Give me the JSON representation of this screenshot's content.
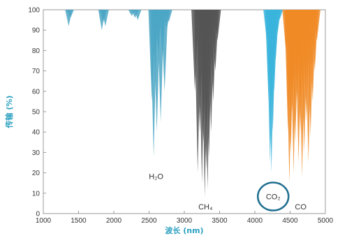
{
  "chart_data": {
    "type": "area",
    "xlabel": "波长 (nm)",
    "ylabel": "传输 (%)",
    "xlim": [
      1000,
      5000
    ],
    "ylim": [
      0,
      100
    ],
    "x_ticks": [
      "1000",
      "1500",
      "2000",
      "2500",
      "3000",
      "3500",
      "4000",
      "4500",
      "5000"
    ],
    "y_ticks": [
      "0",
      "10",
      "20",
      "30",
      "40",
      "50",
      "60",
      "70",
      "80",
      "90",
      "100"
    ],
    "label_color": "#2aa0c0",
    "annotations": [
      {
        "text": "H₂O",
        "x": 2600,
        "y": 17
      },
      {
        "text": "CH₄",
        "x": 3300,
        "y": 2
      },
      {
        "text": "CO₂",
        "x": 4260,
        "y": 7,
        "circled": true
      },
      {
        "text": "CO",
        "x": 4650,
        "y": 2
      }
    ],
    "series": [
      {
        "color": "#4ba6c4",
        "absorption_lines": [
          [
            1360,
            92
          ],
          [
            1385,
            96
          ],
          [
            1830,
            90
          ],
          [
            1850,
            94
          ],
          [
            1880,
            92
          ],
          [
            2255,
            97
          ],
          [
            2300,
            96
          ],
          [
            2340,
            95
          ],
          [
            2540,
            55
          ],
          [
            2565,
            28
          ],
          [
            2585,
            70
          ],
          [
            2610,
            40
          ],
          [
            2630,
            80
          ],
          [
            2665,
            45
          ],
          [
            2690,
            78
          ],
          [
            2720,
            60
          ],
          [
            2750,
            90
          ],
          [
            2780,
            94
          ]
        ]
      },
      {
        "color": "#555555",
        "absorption_lines": [
          [
            3150,
            60
          ],
          [
            3190,
            20
          ],
          [
            3220,
            40
          ],
          [
            3250,
            15
          ],
          [
            3270,
            35
          ],
          [
            3290,
            8
          ],
          [
            3310,
            22
          ],
          [
            3330,
            12
          ],
          [
            3350,
            28
          ],
          [
            3380,
            40
          ],
          [
            3410,
            55
          ],
          [
            3440,
            70
          ],
          [
            3470,
            85
          ]
        ]
      },
      {
        "color": "#3ab4dc",
        "absorption_lines": [
          [
            4170,
            85
          ],
          [
            4195,
            55
          ],
          [
            4215,
            25
          ],
          [
            4235,
            20
          ],
          [
            4255,
            40
          ],
          [
            4275,
            60
          ],
          [
            4295,
            75
          ],
          [
            4320,
            88
          ],
          [
            4350,
            95
          ]
        ]
      },
      {
        "color": "#f08a24",
        "absorption_lines": [
          [
            4440,
            80
          ],
          [
            4470,
            40
          ],
          [
            4490,
            15
          ],
          [
            4510,
            30
          ],
          [
            4530,
            50
          ],
          [
            4550,
            20
          ],
          [
            4575,
            35
          ],
          [
            4600,
            55
          ],
          [
            4620,
            25
          ],
          [
            4645,
            40
          ],
          [
            4670,
            18
          ],
          [
            4700,
            30
          ],
          [
            4730,
            45
          ],
          [
            4760,
            25
          ],
          [
            4790,
            38
          ],
          [
            4820,
            55
          ],
          [
            4850,
            70
          ],
          [
            4880,
            85
          ]
        ]
      }
    ]
  }
}
